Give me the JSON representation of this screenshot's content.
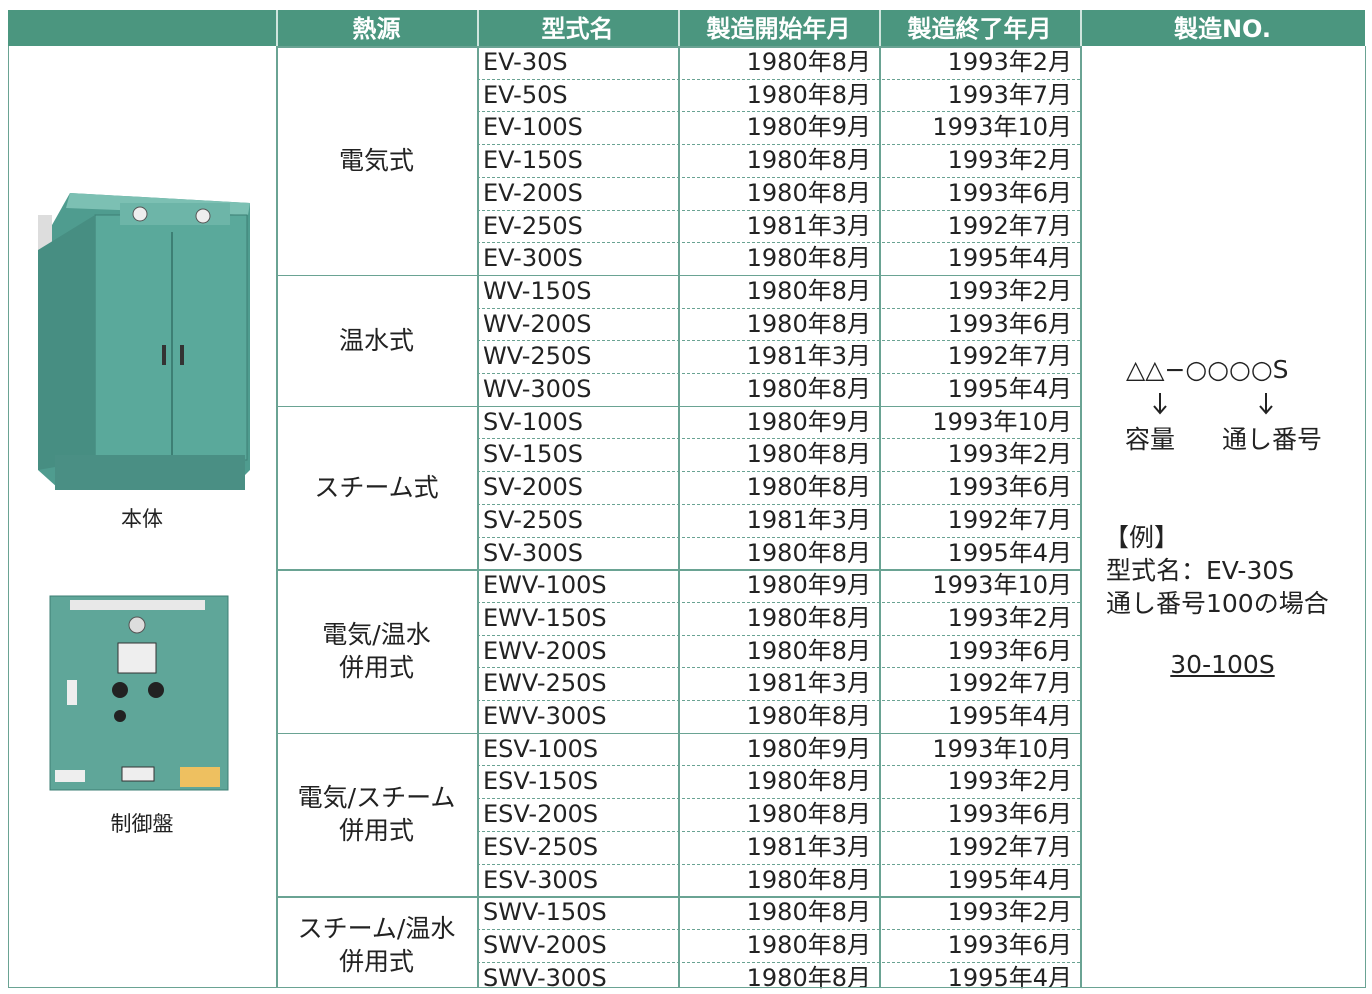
{
  "table": {
    "headers": [
      "熱源",
      "型式名",
      "製造開始年月",
      "製造終了年月",
      "製造NO."
    ],
    "groups": [
      {
        "source": [
          "電気式"
        ],
        "rows": [
          [
            "EV-30S",
            "1980年8月",
            "1993年2月"
          ],
          [
            "EV-50S",
            "1980年8月",
            "1993年7月"
          ],
          [
            "EV-100S",
            "1980年9月",
            "1993年10月"
          ],
          [
            "EV-150S",
            "1980年8月",
            "1993年2月"
          ],
          [
            "EV-200S",
            "1980年8月",
            "1993年6月"
          ],
          [
            "EV-250S",
            "1981年3月",
            "1992年7月"
          ],
          [
            "EV-300S",
            "1980年8月",
            "1995年4月"
          ]
        ]
      },
      {
        "source": [
          "温水式"
        ],
        "rows": [
          [
            "WV-150S",
            "1980年8月",
            "1993年2月"
          ],
          [
            "WV-200S",
            "1980年8月",
            "1993年6月"
          ],
          [
            "WV-250S",
            "1981年3月",
            "1992年7月"
          ],
          [
            "WV-300S",
            "1980年8月",
            "1995年4月"
          ]
        ]
      },
      {
        "source": [
          "スチーム式"
        ],
        "rows": [
          [
            "SV-100S",
            "1980年9月",
            "1993年10月"
          ],
          [
            "SV-150S",
            "1980年8月",
            "1993年2月"
          ],
          [
            "SV-200S",
            "1980年8月",
            "1993年6月"
          ],
          [
            "SV-250S",
            "1981年3月",
            "1992年7月"
          ],
          [
            "SV-300S",
            "1980年8月",
            "1995年4月"
          ]
        ]
      },
      {
        "source": [
          "電気/温水",
          "併用式"
        ],
        "rows": [
          [
            "EWV-100S",
            "1980年9月",
            "1993年10月"
          ],
          [
            "EWV-150S",
            "1980年8月",
            "1993年2月"
          ],
          [
            "EWV-200S",
            "1980年8月",
            "1993年6月"
          ],
          [
            "EWV-250S",
            "1981年3月",
            "1992年7月"
          ],
          [
            "EWV-300S",
            "1980年8月",
            "1995年4月"
          ]
        ]
      },
      {
        "source": [
          "電気/スチーム",
          "併用式"
        ],
        "rows": [
          [
            "ESV-100S",
            "1980年9月",
            "1993年10月"
          ],
          [
            "ESV-150S",
            "1980年8月",
            "1993年2月"
          ],
          [
            "ESV-200S",
            "1980年8月",
            "1993年6月"
          ],
          [
            "ESV-250S",
            "1981年3月",
            "1992年7月"
          ],
          [
            "ESV-300S",
            "1980年8月",
            "1995年4月"
          ]
        ]
      },
      {
        "source": [
          "スチーム/温水",
          "併用式"
        ],
        "rows": [
          [
            "SWV-150S",
            "1980年8月",
            "1993年2月"
          ],
          [
            "SWV-200S",
            "1980年8月",
            "1993年6月"
          ],
          [
            "SWV-300S",
            "1980年8月",
            "1995年4月"
          ]
        ]
      }
    ]
  },
  "images": [
    {
      "caption": "本体"
    },
    {
      "caption": "制御盤"
    }
  ],
  "note": {
    "format": "△△−○○○○S",
    "parts": [
      "容量",
      "通し番号"
    ],
    "example_title": "【例】",
    "example_lines": [
      "型式名：EV-30S",
      "通し番号100の場合"
    ],
    "result": "30-100S"
  }
}
